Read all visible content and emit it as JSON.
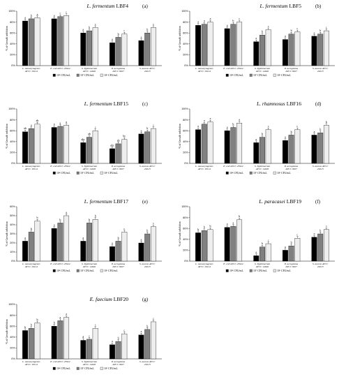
{
  "legend": [
    "10⁴ CFU/mL",
    "10⁷ CFU/mL",
    "10⁹ CFU/mL"
  ],
  "ylabel": "% of Growth inhibition",
  "colors": [
    "#000000",
    "#808080",
    "#eeeeee"
  ],
  "categories": [
    [
      "L. monocytogenes",
      "ATCC 19114"
    ],
    [
      "E. coli ATCC 25922",
      ""
    ],
    [
      "S. Typhimurium",
      "ATCC 14026"
    ],
    [
      "P. aeruginosa",
      "ATCC 9027"
    ],
    [
      "S. aureus ATCC",
      "29213"
    ]
  ],
  "chart_data": [
    {
      "type": "bar",
      "title_italic": "L. fermentum",
      "title_strain": "LBF4",
      "panel": "(a)",
      "ylim": [
        0,
        100
      ],
      "yticks": [
        "0%",
        "20%",
        "40%",
        "60%",
        "80%",
        "100%"
      ],
      "series": [
        {
          "values": [
            82,
            86,
            60,
            42,
            46
          ]
        },
        {
          "values": [
            86,
            90,
            64,
            52,
            60
          ]
        },
        {
          "values": [
            88,
            92,
            70,
            58,
            70
          ]
        }
      ],
      "letters": [
        [
          "a",
          "b",
          "a"
        ],
        [
          "a",
          "c",
          "c"
        ],
        [
          "a",
          "b",
          "c"
        ],
        [
          "a",
          "b",
          "c"
        ],
        [
          "a",
          "b",
          "c"
        ]
      ]
    },
    {
      "type": "bar",
      "title_italic": "L. fermentum",
      "title_strain": "LBF5",
      "panel": "(b)",
      "ylim": [
        0,
        100
      ],
      "yticks": [
        "0%",
        "20%",
        "40%",
        "60%",
        "80%",
        "100%"
      ],
      "series": [
        {
          "values": [
            74,
            68,
            44,
            48,
            54
          ]
        },
        {
          "values": [
            76,
            76,
            56,
            58,
            58
          ]
        },
        {
          "values": [
            80,
            80,
            66,
            62,
            64
          ]
        }
      ],
      "letters": [
        [
          "a",
          "a",
          "a"
        ],
        [
          "a",
          "b",
          "c"
        ],
        [
          "a",
          "b",
          "c"
        ],
        [
          "a",
          "b",
          "c"
        ],
        [
          "a",
          "b",
          "c"
        ]
      ]
    },
    {
      "type": "bar",
      "title_italic": "L. fermentum",
      "title_strain": "LBF15",
      "panel": "(c)",
      "ylim": [
        0,
        100
      ],
      "yticks": [
        "0%",
        "20%",
        "40%",
        "60%",
        "80%",
        "100%"
      ],
      "series": [
        {
          "values": [
            58,
            66,
            38,
            27,
            54
          ]
        },
        {
          "values": [
            64,
            68,
            48,
            36,
            58
          ]
        },
        {
          "values": [
            72,
            70,
            60,
            44,
            64
          ]
        }
      ],
      "letters": [
        [
          "ab",
          "a",
          "ab"
        ],
        [
          "a",
          "a",
          "a"
        ],
        [
          "abc",
          "ab",
          "c"
        ],
        [
          "abc",
          "ab",
          "bc"
        ],
        [
          "a",
          "b",
          "c"
        ]
      ]
    },
    {
      "type": "bar",
      "title_italic": "L. rhamnosus",
      "title_strain": "LBF16",
      "panel": "(d)",
      "ylim": [
        0,
        100
      ],
      "yticks": [
        "0%",
        "20%",
        "40%",
        "60%",
        "80%",
        "100%"
      ],
      "series": [
        {
          "values": [
            62,
            60,
            38,
            42,
            52
          ]
        },
        {
          "values": [
            72,
            66,
            48,
            52,
            56
          ]
        },
        {
          "values": [
            76,
            74,
            62,
            62,
            70
          ]
        }
      ],
      "letters": [
        [
          "a",
          "a",
          "a"
        ],
        [
          "a",
          "b",
          "a"
        ],
        [
          "a",
          "b",
          "c"
        ],
        [
          "a",
          "b",
          "c"
        ],
        [
          "a",
          "b",
          "b"
        ]
      ]
    },
    {
      "type": "bar",
      "title_italic": "L. fermentum",
      "title_strain": "LBF17",
      "panel": "(e)",
      "ylim": [
        0,
        60
      ],
      "yticks": [
        "0%",
        "10%",
        "20%",
        "30%",
        "40%",
        "50%",
        "60%"
      ],
      "series": [
        {
          "values": [
            22,
            36,
            22,
            16,
            20
          ]
        },
        {
          "values": [
            32,
            42,
            42,
            22,
            30
          ]
        },
        {
          "values": [
            44,
            50,
            46,
            32,
            38
          ]
        }
      ],
      "letters": [
        [
          "a",
          "b",
          "b"
        ],
        [
          "a",
          "b",
          "a"
        ],
        [
          "a",
          "b",
          "b"
        ],
        [
          "a",
          "b",
          "c"
        ],
        [
          "a",
          "b",
          "c"
        ]
      ]
    },
    {
      "type": "bar",
      "title_italic": "L. paracasei",
      "title_strain": "LBF19",
      "panel": "(f)",
      "ylim": [
        0,
        100
      ],
      "yticks": [
        "0%",
        "20%",
        "40%",
        "60%",
        "80%",
        "100%"
      ],
      "series": [
        {
          "values": [
            52,
            62,
            10,
            20,
            44
          ]
        },
        {
          "values": [
            56,
            64,
            26,
            28,
            50
          ]
        },
        {
          "values": [
            58,
            76,
            32,
            42,
            58
          ]
        }
      ],
      "letters": [
        [
          "b",
          "b",
          "b"
        ],
        [
          "a",
          "a",
          "b"
        ],
        [
          "a",
          "b",
          "c"
        ],
        [
          "a",
          "b",
          "c"
        ],
        [
          "a",
          "b",
          "c"
        ]
      ]
    },
    {
      "type": "bar",
      "title_italic": "E. faecium",
      "title_strain": "LBF20",
      "panel": "(g)",
      "ylim": [
        0,
        100
      ],
      "yticks": [
        "0%",
        "20%",
        "40%",
        "60%",
        "80%",
        "100%"
      ],
      "series": [
        {
          "values": [
            52,
            60,
            34,
            26,
            44
          ]
        },
        {
          "values": [
            56,
            70,
            36,
            32,
            54
          ]
        },
        {
          "values": [
            66,
            76,
            56,
            46,
            68
          ]
        }
      ],
      "letters": [
        [
          "b",
          "b",
          "b"
        ],
        [
          "b",
          "a",
          "a"
        ],
        [
          "d",
          "c",
          "c"
        ],
        [
          "a",
          "b",
          "c"
        ],
        [
          "a",
          "b",
          "c"
        ]
      ]
    }
  ]
}
